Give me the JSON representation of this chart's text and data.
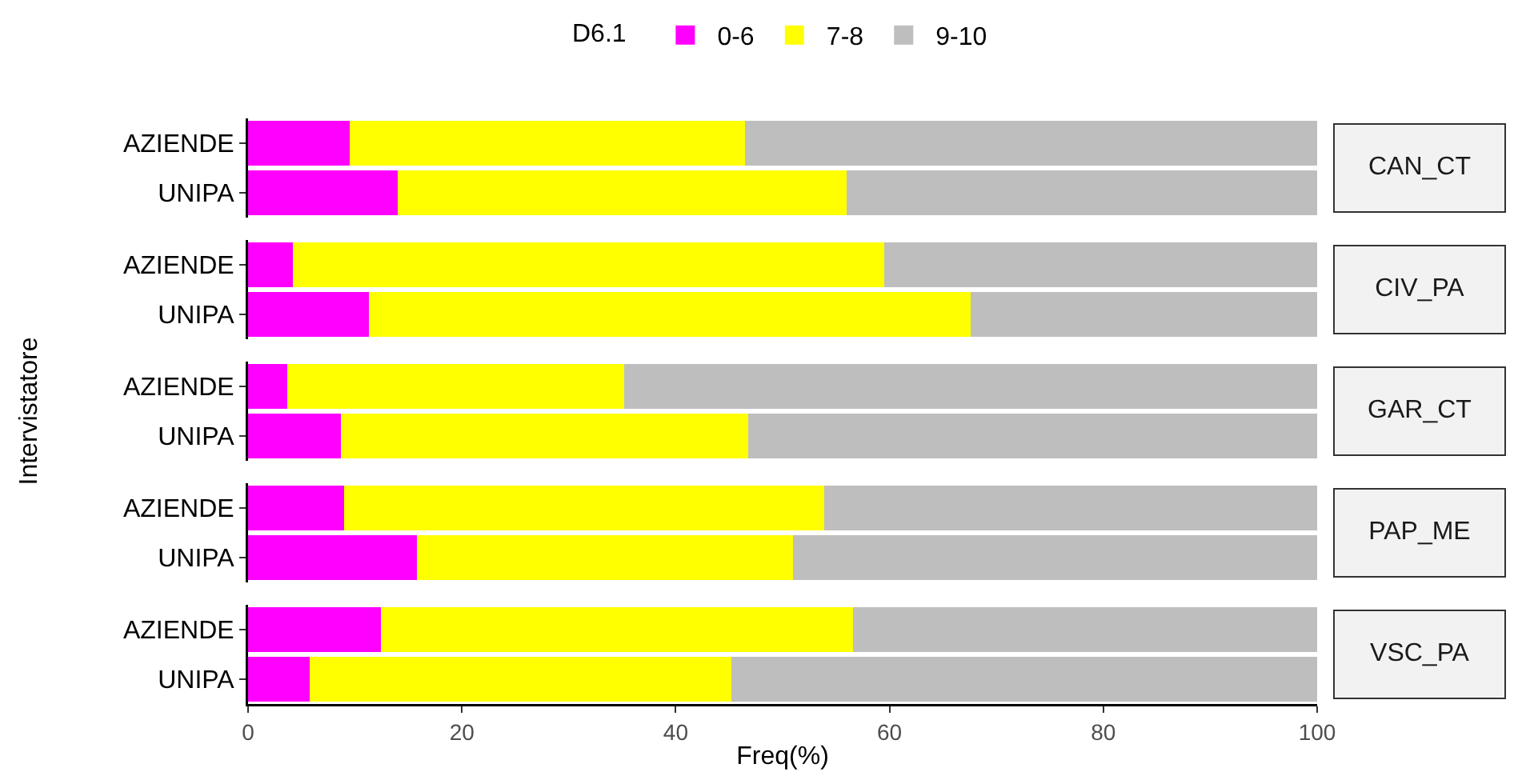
{
  "chart_data": [
    {
      "type": "bar",
      "orientation": "horizontal",
      "stacked": true,
      "y2label": "CAN_CT",
      "legend_title": "D6.1",
      "legend": "top",
      "tick_labels": "y",
      "categories": [
        "AZIENDE",
        "UNIPA"
      ],
      "xlim": [
        0,
        100
      ],
      "xticks": [
        0,
        20,
        40,
        60,
        80,
        100
      ],
      "series": [
        {
          "name": "0-6",
          "color": "#ff00ff",
          "values": [
            9.5,
            14.0
          ]
        },
        {
          "name": "7-8",
          "color": "#ffff00",
          "values": [
            37.0,
            42.0
          ]
        },
        {
          "name": "9-10",
          "color": "#bebebe",
          "values": [
            53.5,
            44.0
          ]
        }
      ]
    },
    {
      "type": "bar",
      "orientation": "horizontal",
      "stacked": true,
      "y2label": "CIV_PA",
      "tick_labels": "y",
      "categories": [
        "AZIENDE",
        "UNIPA"
      ],
      "xlim": [
        0,
        100
      ],
      "xticks": [
        0,
        20,
        40,
        60,
        80,
        100
      ],
      "series": [
        {
          "color": "#ff00ff",
          "values": [
            4.2,
            11.3
          ]
        },
        {
          "color": "#ffff00",
          "values": [
            55.3,
            56.3
          ]
        },
        {
          "color": "#bebebe",
          "values": [
            40.5,
            32.4
          ]
        }
      ]
    },
    {
      "type": "bar",
      "orientation": "horizontal",
      "stacked": true,
      "y2label": "GAR_CT",
      "ylabel": "Intervistatore",
      "tick_labels": "y",
      "categories": [
        "AZIENDE",
        "UNIPA"
      ],
      "xlim": [
        0,
        100
      ],
      "xticks": [
        0,
        20,
        40,
        60,
        80,
        100
      ],
      "series": [
        {
          "color": "#ff00ff",
          "values": [
            3.7,
            8.7
          ]
        },
        {
          "color": "#ffff00",
          "values": [
            31.5,
            38.1
          ]
        },
        {
          "color": "#bebebe",
          "values": [
            64.8,
            53.2
          ]
        }
      ]
    },
    {
      "type": "bar",
      "orientation": "horizontal",
      "stacked": true,
      "y2label": "PAP_ME",
      "tick_labels": "y",
      "categories": [
        "AZIENDE",
        "UNIPA"
      ],
      "xlim": [
        0,
        100
      ],
      "xticks": [
        0,
        20,
        40,
        60,
        80,
        100
      ],
      "series": [
        {
          "color": "#ff00ff",
          "values": [
            9.0,
            15.8
          ]
        },
        {
          "color": "#ffff00",
          "values": [
            44.9,
            35.2
          ]
        },
        {
          "color": "#bebebe",
          "values": [
            46.1,
            49.0
          ]
        }
      ]
    },
    {
      "type": "bar",
      "orientation": "horizontal",
      "stacked": true,
      "y2label": "VSC_PA",
      "xlabel": "Freq(%)",
      "categories": [
        "AZIENDE",
        "UNIPA"
      ],
      "xlim": [
        0,
        100
      ],
      "xticks": [
        0,
        20,
        40,
        60,
        80,
        100
      ],
      "series": [
        {
          "color": "#ff00ff",
          "values": [
            12.4,
            5.8
          ]
        },
        {
          "color": "#ffff00",
          "values": [
            44.2,
            39.4
          ]
        },
        {
          "color": "#bebebe",
          "values": [
            43.4,
            54.8
          ]
        }
      ]
    }
  ]
}
